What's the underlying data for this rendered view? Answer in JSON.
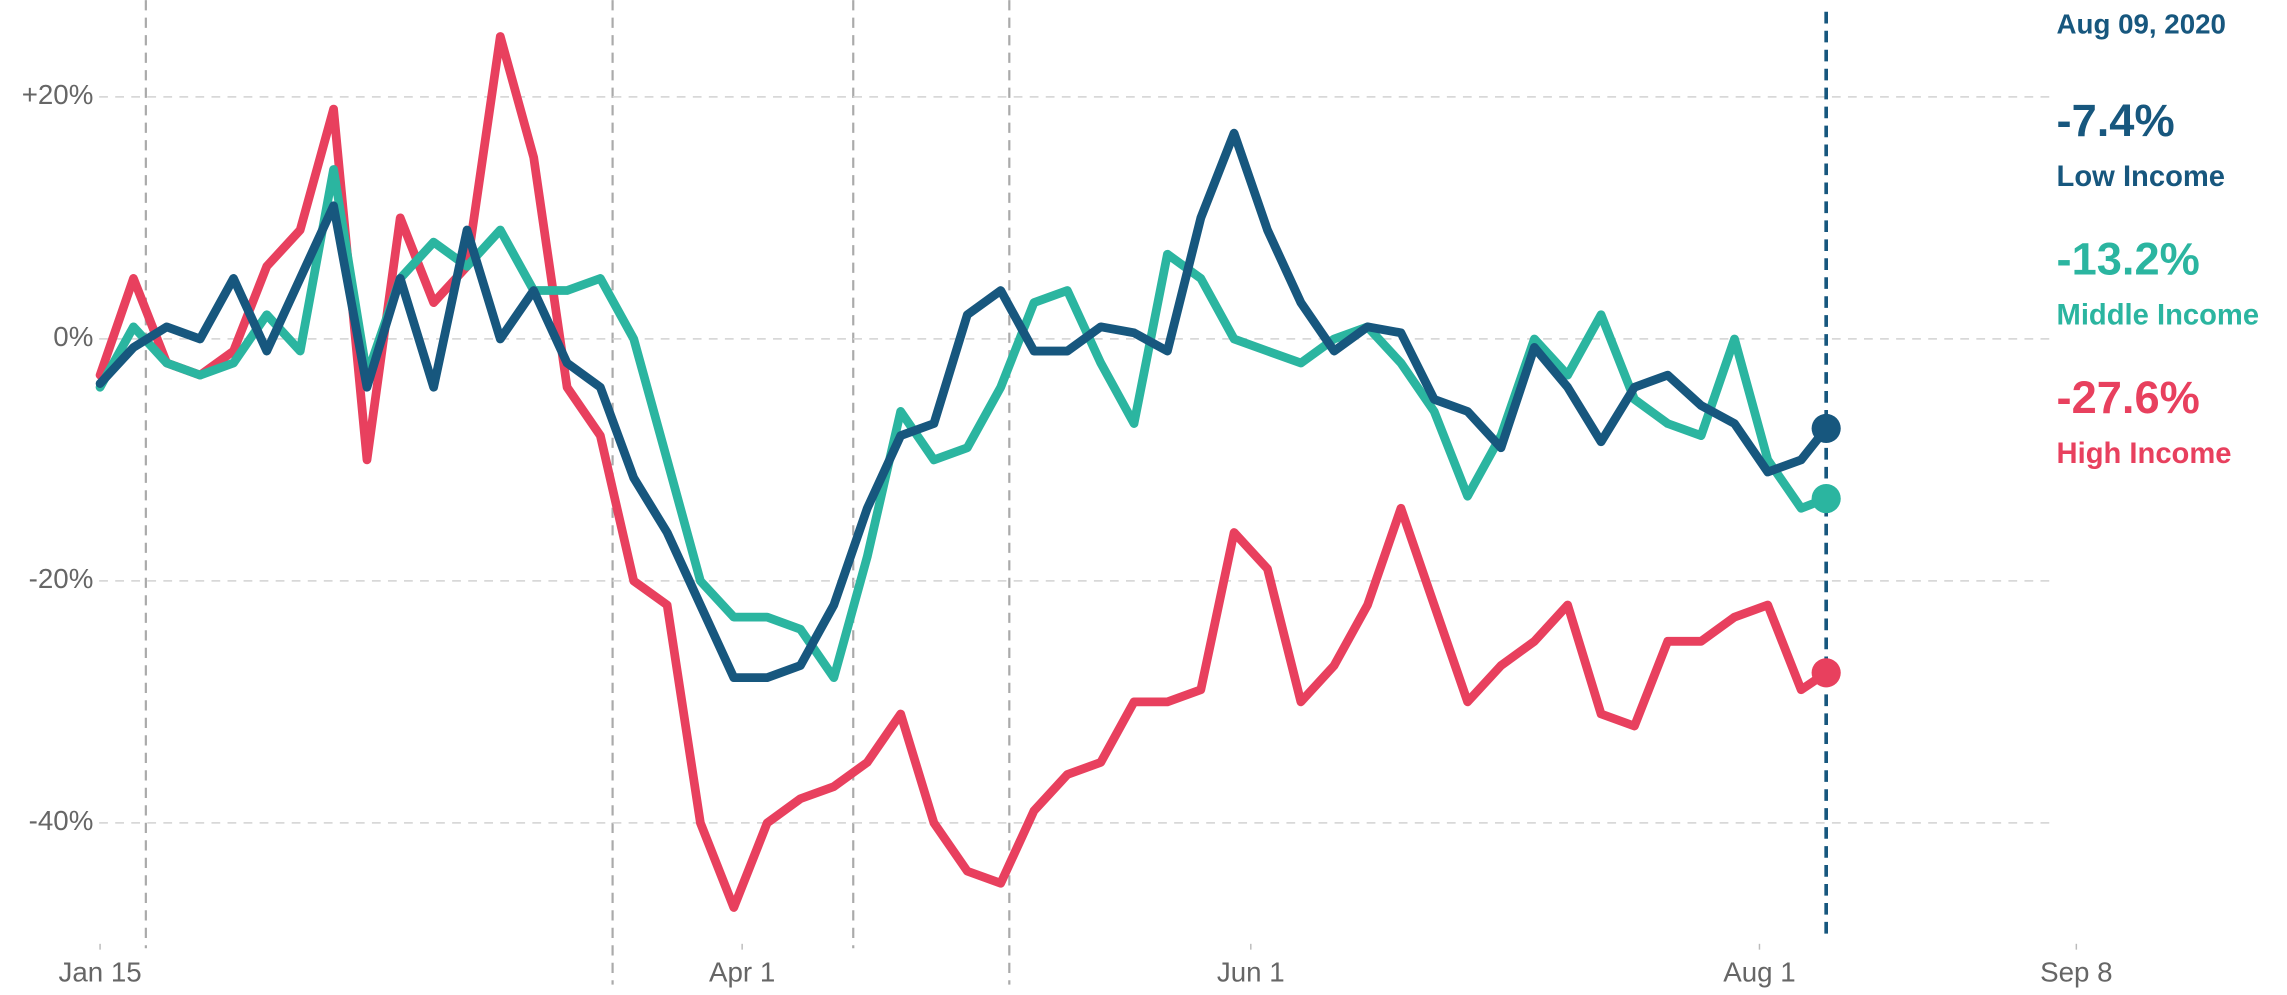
{
  "chart_data": {
    "type": "line",
    "date_label": "Aug 09, 2020",
    "x": [
      "2020-01-15",
      "2020-01-19",
      "2020-01-23",
      "2020-01-27",
      "2020-01-31",
      "2020-02-04",
      "2020-02-08",
      "2020-02-12",
      "2020-02-16",
      "2020-02-20",
      "2020-02-24",
      "2020-02-28",
      "2020-03-03",
      "2020-03-07",
      "2020-03-11",
      "2020-03-15",
      "2020-03-19",
      "2020-03-23",
      "2020-03-27",
      "2020-03-31",
      "2020-04-04",
      "2020-04-08",
      "2020-04-12",
      "2020-04-16",
      "2020-04-20",
      "2020-04-24",
      "2020-04-28",
      "2020-05-02",
      "2020-05-06",
      "2020-05-10",
      "2020-05-14",
      "2020-05-18",
      "2020-05-22",
      "2020-05-26",
      "2020-05-30",
      "2020-06-03",
      "2020-06-07",
      "2020-06-11",
      "2020-06-15",
      "2020-06-19",
      "2020-06-23",
      "2020-06-27",
      "2020-07-01",
      "2020-07-05",
      "2020-07-09",
      "2020-07-13",
      "2020-07-17",
      "2020-07-21",
      "2020-07-25",
      "2020-07-29",
      "2020-08-02",
      "2020-08-06",
      "2020-08-09"
    ],
    "series": [
      {
        "name": "Low Income",
        "color": "#17577e",
        "value_label": "-7.4%",
        "values": [
          -3.7,
          -0.7,
          1,
          0,
          5,
          -1,
          5,
          11,
          -4,
          5,
          -4,
          9,
          0,
          4,
          -2,
          -4,
          -11.5,
          -16,
          -22,
          -28,
          -28,
          -27,
          -22,
          -14,
          -8,
          -7,
          2,
          4,
          -1,
          -1,
          1,
          0.5,
          -1,
          10,
          17,
          9,
          3,
          -1,
          1,
          0.5,
          -5,
          -6,
          -9,
          -0.7,
          -4,
          -8.5,
          -4,
          -3,
          -5.5,
          -7,
          -11,
          -10,
          -7.4
        ]
      },
      {
        "name": "Middle Income",
        "color": "#2bb5a0",
        "value_label": "-13.2%",
        "values": [
          -4,
          1,
          -2,
          -3,
          -2,
          2,
          -1,
          14,
          -3,
          5,
          8,
          6,
          9,
          4,
          4,
          5,
          0,
          -10,
          -20,
          -23,
          -23,
          -24,
          -28,
          -18,
          -6,
          -10,
          -9,
          -4,
          3,
          4,
          -2,
          -7,
          7,
          5,
          0,
          -1,
          -2,
          0,
          1,
          -2,
          -6,
          -13,
          -8,
          0,
          -3,
          2,
          -5,
          -7,
          -8,
          0,
          -10,
          -14,
          -13.2
        ]
      },
      {
        "name": "High Income",
        "color": "#e8405e",
        "value_label": "-27.6%",
        "values": [
          -3,
          5,
          -2,
          -3,
          -1,
          6,
          9,
          19,
          -10,
          10,
          3,
          6,
          25,
          15,
          -4,
          -8,
          -20,
          -22,
          -40,
          -47,
          -40,
          -38,
          -37,
          -35,
          -31,
          -40,
          -44,
          -45,
          -39,
          -36,
          -35,
          -30,
          -30,
          -29,
          -16,
          -19,
          -30,
          -27,
          -22,
          -14,
          -22,
          -30,
          -27,
          -25,
          -22,
          -31,
          -32,
          -25,
          -25,
          -23,
          -22,
          -29,
          -27.6
        ]
      }
    ],
    "xlim": [
      "2020-01-03",
      "2020-09-10"
    ],
    "xticks": [
      {
        "value": "2020-01-15",
        "label": "Jan 15"
      },
      {
        "value": "2020-04-01",
        "label": "Apr 1"
      },
      {
        "value": "2020-06-01",
        "label": "Jun 1"
      },
      {
        "value": "2020-08-01",
        "label": "Aug 1"
      },
      {
        "value": "2020-09-08",
        "label": "Sep 8"
      }
    ],
    "ylim": [
      -50,
      28
    ],
    "yticks": [
      {
        "value": 20,
        "label": "+20%"
      },
      {
        "value": 0,
        "label": "0%"
      },
      {
        "value": -20,
        "label": "-20%"
      },
      {
        "value": -40,
        "label": "-40%"
      }
    ],
    "grid": true
  }
}
